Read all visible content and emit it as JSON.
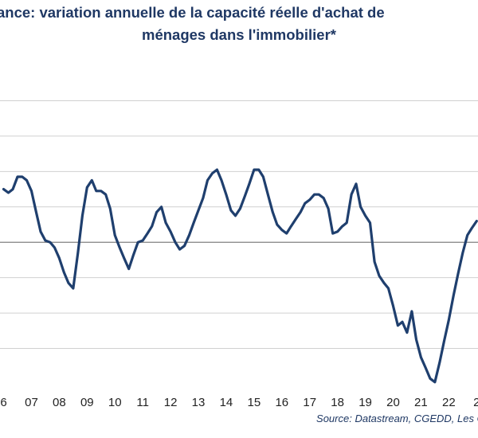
{
  "chart_data": {
    "type": "line",
    "title_line1": "ance: variation annuelle de la capacité réelle  d'achat de",
    "title_line2": "ménages dans l'immobilier*",
    "source": "Source: Datastream, CGEDD, Les C",
    "xlabel": "",
    "ylabel": "",
    "grid": true,
    "x_tick_labels": [
      "6",
      "07",
      "08",
      "09",
      "10",
      "11",
      "12",
      "13",
      "14",
      "15",
      "16",
      "17",
      "18",
      "19",
      "20",
      "21",
      "22",
      "2"
    ],
    "x_ticks": [
      2006,
      2007,
      2008,
      2009,
      2010,
      2011,
      2012,
      2013,
      2014,
      2015,
      2016,
      2017,
      2018,
      2019,
      2020,
      2021,
      2022,
      2023
    ],
    "xlim": [
      2005.87,
      2023.05
    ],
    "ylim": [
      -4,
      5
    ],
    "yticks": [
      -3,
      -2,
      -1,
      0,
      1,
      2,
      3,
      4
    ],
    "series": [
      {
        "color": "#1f3f6e",
        "x": [
          2006.0,
          2006.17,
          2006.33,
          2006.5,
          2006.67,
          2006.83,
          2007.0,
          2007.17,
          2007.33,
          2007.5,
          2007.67,
          2007.83,
          2008.0,
          2008.17,
          2008.33,
          2008.5,
          2008.67,
          2008.83,
          2009.0,
          2009.17,
          2009.33,
          2009.5,
          2009.67,
          2009.83,
          2010.0,
          2010.17,
          2010.33,
          2010.5,
          2010.67,
          2010.83,
          2011.0,
          2011.17,
          2011.33,
          2011.5,
          2011.67,
          2011.83,
          2012.0,
          2012.17,
          2012.33,
          2012.5,
          2012.67,
          2012.83,
          2013.0,
          2013.17,
          2013.33,
          2013.5,
          2013.67,
          2013.83,
          2014.0,
          2014.17,
          2014.33,
          2014.5,
          2014.67,
          2014.83,
          2015.0,
          2015.17,
          2015.33,
          2015.5,
          2015.67,
          2015.83,
          2016.0,
          2016.17,
          2016.33,
          2016.5,
          2016.67,
          2016.83,
          2017.0,
          2017.17,
          2017.33,
          2017.5,
          2017.67,
          2017.83,
          2018.0,
          2018.17,
          2018.33,
          2018.5,
          2018.67,
          2018.83,
          2019.0,
          2019.17,
          2019.33,
          2019.5,
          2019.67,
          2019.83,
          2020.0,
          2020.17,
          2020.33,
          2020.5,
          2020.67,
          2020.83,
          2021.0,
          2021.17,
          2021.33,
          2021.5,
          2021.67,
          2021.83,
          2022.0,
          2022.17,
          2022.33,
          2022.5,
          2022.67,
          2022.83,
          2023.0
        ],
        "values": [
          1.5,
          1.4,
          1.5,
          1.85,
          1.85,
          1.75,
          1.45,
          0.85,
          0.3,
          0.05,
          0.0,
          -0.15,
          -0.45,
          -0.85,
          -1.15,
          -1.3,
          -0.3,
          0.75,
          1.55,
          1.75,
          1.45,
          1.45,
          1.35,
          0.95,
          0.2,
          -0.15,
          -0.45,
          -0.75,
          -0.35,
          0.0,
          0.05,
          0.25,
          0.45,
          0.85,
          1.0,
          0.55,
          0.3,
          0.0,
          -0.2,
          -0.1,
          0.2,
          0.55,
          0.9,
          1.25,
          1.75,
          1.95,
          2.05,
          1.75,
          1.35,
          0.9,
          0.75,
          0.95,
          1.3,
          1.65,
          2.05,
          2.05,
          1.85,
          1.35,
          0.85,
          0.5,
          0.35,
          0.25,
          0.45,
          0.65,
          0.85,
          1.1,
          1.2,
          1.35,
          1.35,
          1.25,
          0.95,
          0.25,
          0.3,
          0.45,
          0.55,
          1.35,
          1.65,
          1.0,
          0.75,
          0.55,
          -0.55,
          -0.95,
          -1.15,
          -1.3,
          -1.8,
          -2.35,
          -2.25,
          -2.55,
          -1.95,
          -2.75,
          -3.25,
          -3.55,
          -3.85,
          -3.95,
          -3.4,
          -2.8,
          -2.2,
          -1.5,
          -0.9,
          -0.3,
          0.2,
          0.4,
          0.6
        ]
      }
    ]
  }
}
